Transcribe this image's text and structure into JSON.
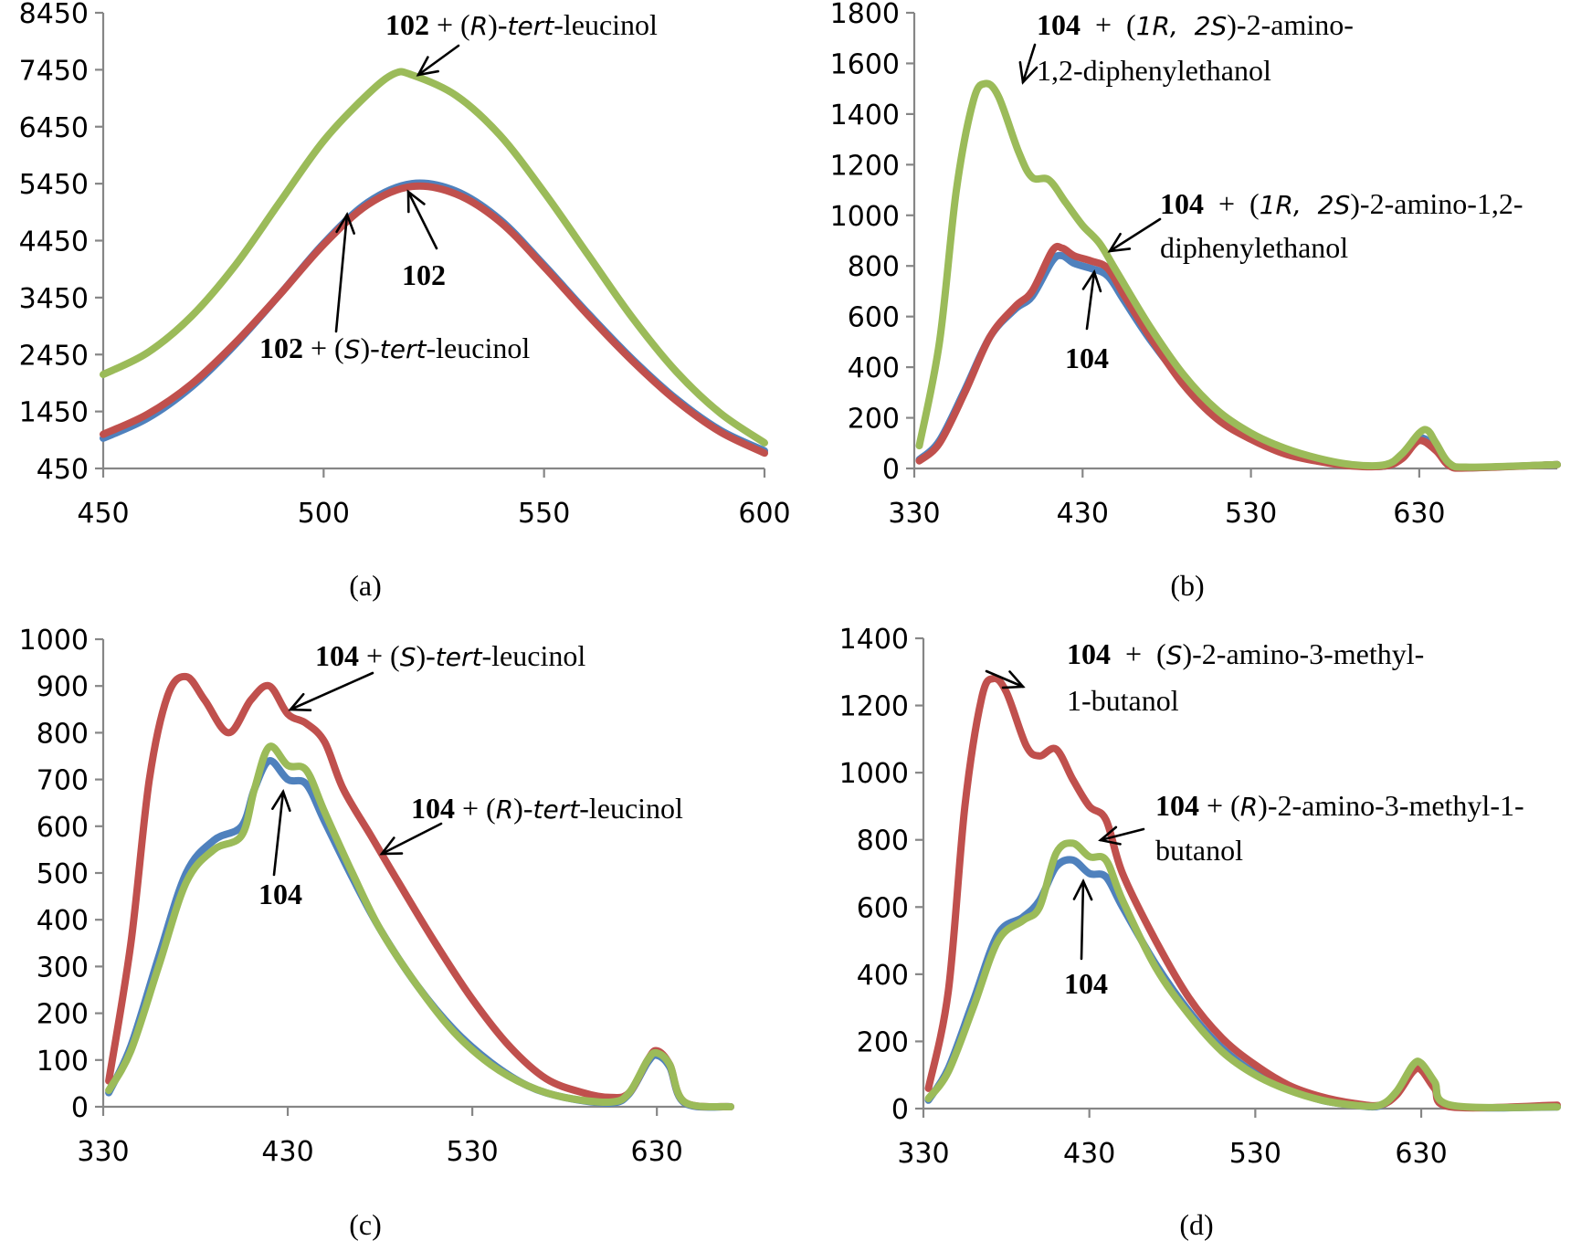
{
  "colors": {
    "blue": "#4F81BD",
    "red": "#C0504D",
    "green": "#9BBB59",
    "axis": "#868686",
    "text": "#000000"
  },
  "chart_data": [
    {
      "id": "a",
      "type": "line",
      "caption": "(a)",
      "title": "",
      "xlabel": "",
      "ylabel": "",
      "xlim": [
        450,
        600
      ],
      "ylim": [
        450,
        8450
      ],
      "xticks": [
        450,
        500,
        550,
        600
      ],
      "yticks": [
        450,
        1450,
        2450,
        3450,
        4450,
        5450,
        6450,
        7450,
        8450
      ],
      "grid": false,
      "series": [
        {
          "name": "102",
          "color": "blue",
          "x": [
            450,
            460,
            470,
            480,
            490,
            500,
            510,
            520,
            530,
            540,
            550,
            560,
            570,
            580,
            590,
            600
          ],
          "y": [
            980,
            1330,
            1880,
            2630,
            3500,
            4400,
            5120,
            5450,
            5320,
            4820,
            4020,
            3170,
            2370,
            1670,
            1120,
            760
          ]
        },
        {
          "name": "102 + (S)-tert-leucinol",
          "color": "red",
          "x": [
            450,
            460,
            470,
            480,
            490,
            500,
            510,
            520,
            530,
            540,
            550,
            560,
            570,
            580,
            590,
            600
          ],
          "y": [
            1050,
            1400,
            1930,
            2660,
            3500,
            4380,
            5080,
            5400,
            5270,
            4780,
            3990,
            3140,
            2340,
            1640,
            1090,
            720
          ]
        },
        {
          "name": "102 + (R)-tert-leucinol",
          "color": "green",
          "x": [
            450,
            460,
            470,
            480,
            490,
            500,
            510,
            516,
            520,
            530,
            540,
            550,
            560,
            570,
            580,
            590,
            600
          ],
          "y": [
            2100,
            2480,
            3120,
            4020,
            5120,
            6200,
            7020,
            7380,
            7360,
            7000,
            6300,
            5300,
            4200,
            3100,
            2150,
            1420,
            900
          ]
        }
      ],
      "annotations": [
        {
          "target": "102 + (R)-tert-leucinol",
          "parts": [
            {
              "t": "102",
              "s": "b"
            },
            {
              "t": " + (",
              "s": ""
            },
            {
              "t": "R",
              "s": "i"
            },
            {
              "t": ")-",
              "s": ""
            },
            {
              "t": "tert",
              "s": "i"
            },
            {
              "t": "-leucinol",
              "s": ""
            }
          ]
        },
        {
          "target": "102",
          "parts": [
            {
              "t": "102",
              "s": "b"
            }
          ]
        },
        {
          "target": "102 + (S)-tert-leucinol",
          "parts": [
            {
              "t": "102",
              "s": "b"
            },
            {
              "t": " + (",
              "s": ""
            },
            {
              "t": "S",
              "s": "i"
            },
            {
              "t": ")-",
              "s": ""
            },
            {
              "t": "tert",
              "s": "i"
            },
            {
              "t": "-leucinol",
              "s": ""
            }
          ]
        }
      ]
    },
    {
      "id": "b",
      "type": "line",
      "caption": "(b)",
      "title": "",
      "xlabel": "",
      "ylabel": "",
      "xlim": [
        330,
        712
      ],
      "ylim": [
        0,
        1800
      ],
      "xticks": [
        330,
        430,
        530,
        630
      ],
      "yticks": [
        0,
        200,
        400,
        600,
        800,
        1000,
        1200,
        1400,
        1600,
        1800
      ],
      "grid": false,
      "series": [
        {
          "name": "104",
          "color": "blue",
          "x": [
            333,
            345,
            360,
            375,
            390,
            400,
            412,
            418,
            425,
            435,
            445,
            455,
            470,
            490,
            510,
            530,
            550,
            570,
            590,
            610,
            620,
            630,
            640,
            648,
            660,
            712
          ],
          "y": [
            35,
            110,
            310,
            520,
            630,
            680,
            820,
            840,
            810,
            790,
            760,
            660,
            510,
            340,
            205,
            125,
            65,
            32,
            12,
            10,
            45,
            120,
            80,
            12,
            3,
            15
          ]
        },
        {
          "name": "104 + (1R, 2S)-2-amino-1,2-diphenylethanol",
          "color": "red",
          "x": [
            333,
            345,
            360,
            375,
            390,
            400,
            412,
            418,
            425,
            435,
            445,
            455,
            470,
            490,
            510,
            530,
            550,
            570,
            590,
            610,
            620,
            630,
            640,
            648,
            660,
            712
          ],
          "y": [
            30,
            100,
            300,
            520,
            640,
            700,
            860,
            870,
            840,
            820,
            790,
            680,
            520,
            330,
            195,
            115,
            58,
            28,
            10,
            10,
            40,
            110,
            70,
            10,
            2,
            15
          ]
        },
        {
          "name": "104 + (1R, 2S)-2-amino-1,2-diphenylethanol (upper)",
          "color": "green",
          "x": [
            333,
            345,
            355,
            365,
            372,
            380,
            392,
            400,
            410,
            420,
            430,
            440,
            450,
            470,
            490,
            510,
            530,
            550,
            570,
            590,
            610,
            620,
            630,
            635,
            640,
            648,
            660,
            712
          ],
          "y": [
            90,
            500,
            1100,
            1450,
            1520,
            1470,
            1250,
            1150,
            1140,
            1050,
            960,
            890,
            780,
            560,
            370,
            230,
            140,
            80,
            40,
            15,
            15,
            60,
            140,
            150,
            100,
            20,
            5,
            15
          ]
        }
      ],
      "annotations": [
        {
          "target": "green",
          "parts": [
            {
              "t": "104",
              "s": "b"
            },
            {
              "t": "  +  (",
              "s": ""
            },
            {
              "t": "1R,  2S",
              "s": "i"
            },
            {
              "t": ")-2-amino-",
              "s": ""
            }
          ],
          "line2": "1,2-diphenylethanol"
        },
        {
          "target": "red",
          "parts": [
            {
              "t": "104",
              "s": "b"
            },
            {
              "t": "  +  (",
              "s": ""
            },
            {
              "t": "1R,  2S",
              "s": "i"
            },
            {
              "t": ")-2-amino-1,2-",
              "s": ""
            }
          ],
          "line2": "diphenylethanol"
        },
        {
          "target": "blue",
          "parts": [
            {
              "t": "104",
              "s": "b"
            }
          ]
        }
      ]
    },
    {
      "id": "c",
      "type": "line",
      "caption": "(c)",
      "title": "",
      "xlabel": "",
      "ylabel": "",
      "xlim": [
        330,
        670
      ],
      "ylim": [
        0,
        1000
      ],
      "xticks": [
        330,
        430,
        530,
        630
      ],
      "yticks": [
        0,
        100,
        200,
        300,
        400,
        500,
        600,
        700,
        800,
        900,
        1000
      ],
      "grid": false,
      "series": [
        {
          "name": "104",
          "color": "blue",
          "x": [
            333,
            345,
            360,
            375,
            390,
            405,
            412,
            420,
            430,
            440,
            450,
            465,
            480,
            500,
            520,
            540,
            560,
            580,
            605,
            615,
            625,
            630,
            637,
            645,
            670
          ],
          "y": [
            30,
            130,
            320,
            500,
            570,
            600,
            680,
            740,
            700,
            690,
            610,
            490,
            380,
            260,
            165,
            95,
            45,
            20,
            8,
            28,
            95,
            110,
            85,
            8,
            0
          ]
        },
        {
          "name": "104 + (S)-tert-leucinol",
          "color": "red",
          "x": [
            333,
            345,
            355,
            365,
            375,
            385,
            398,
            410,
            420,
            430,
            440,
            450,
            460,
            475,
            490,
            510,
            530,
            550,
            570,
            590,
            605,
            615,
            625,
            630,
            637,
            645,
            670
          ],
          "y": [
            55,
            350,
            700,
            880,
            920,
            870,
            800,
            870,
            900,
            840,
            820,
            780,
            680,
            580,
            480,
            350,
            230,
            130,
            60,
            30,
            20,
            30,
            100,
            120,
            90,
            10,
            0
          ]
        },
        {
          "name": "104 + (R)-tert-leucinol",
          "color": "green",
          "x": [
            333,
            345,
            360,
            375,
            390,
            405,
            412,
            420,
            430,
            440,
            450,
            465,
            480,
            500,
            520,
            540,
            560,
            580,
            605,
            615,
            625,
            630,
            637,
            645,
            670
          ],
          "y": [
            35,
            120,
            300,
            480,
            550,
            580,
            680,
            770,
            730,
            720,
            630,
            500,
            380,
            260,
            160,
            90,
            45,
            20,
            10,
            30,
            100,
            115,
            90,
            10,
            0
          ]
        }
      ],
      "annotations": [
        {
          "target": "red",
          "parts": [
            {
              "t": "104",
              "s": "b"
            },
            {
              "t": " + (",
              "s": ""
            },
            {
              "t": "S",
              "s": "i"
            },
            {
              "t": ")-",
              "s": ""
            },
            {
              "t": "tert",
              "s": "i"
            },
            {
              "t": "-leucinol",
              "s": ""
            }
          ]
        },
        {
          "target": "green",
          "parts": [
            {
              "t": "104",
              "s": "b"
            },
            {
              "t": " + (",
              "s": ""
            },
            {
              "t": "R",
              "s": "i"
            },
            {
              "t": ")-",
              "s": ""
            },
            {
              "t": "tert",
              "s": "i"
            },
            {
              "t": "-leucinol",
              "s": ""
            }
          ]
        },
        {
          "target": "blue",
          "parts": [
            {
              "t": "104",
              "s": "b"
            }
          ]
        }
      ]
    },
    {
      "id": "d",
      "type": "line",
      "caption": "(d)",
      "title": "",
      "xlabel": "",
      "ylabel": "",
      "xlim": [
        330,
        712
      ],
      "ylim": [
        0,
        1400
      ],
      "xticks": [
        330,
        430,
        530,
        630
      ],
      "yticks": [
        0,
        200,
        400,
        600,
        800,
        1000,
        1200,
        1400
      ],
      "grid": false,
      "series": [
        {
          "name": "104",
          "color": "blue",
          "x": [
            333,
            345,
            360,
            375,
            390,
            400,
            410,
            420,
            430,
            440,
            450,
            470,
            490,
            510,
            530,
            550,
            570,
            590,
            605,
            615,
            625,
            630,
            638,
            648,
            712
          ],
          "y": [
            25,
            120,
            320,
            520,
            570,
            620,
            720,
            740,
            700,
            690,
            600,
            430,
            290,
            180,
            105,
            58,
            25,
            10,
            8,
            45,
            120,
            125,
            75,
            8,
            5
          ]
        },
        {
          "name": "104 + (S)-2-amino-3-methyl-1-butanol",
          "color": "red",
          "x": [
            333,
            345,
            355,
            365,
            372,
            380,
            392,
            400,
            410,
            420,
            430,
            440,
            450,
            470,
            490,
            510,
            530,
            550,
            570,
            590,
            605,
            615,
            625,
            630,
            638,
            648,
            712
          ],
          "y": [
            60,
            350,
            900,
            1220,
            1280,
            1240,
            1080,
            1050,
            1070,
            980,
            900,
            860,
            700,
            500,
            330,
            210,
            130,
            70,
            35,
            15,
            10,
            40,
            110,
            115,
            60,
            5,
            10
          ]
        },
        {
          "name": "104 + (R)-2-amino-3-methyl-1-butanol",
          "color": "green",
          "x": [
            333,
            345,
            360,
            375,
            390,
            400,
            410,
            420,
            430,
            440,
            450,
            470,
            490,
            510,
            530,
            550,
            570,
            590,
            605,
            615,
            625,
            630,
            638,
            648,
            712
          ],
          "y": [
            30,
            110,
            300,
            500,
            560,
            600,
            760,
            790,
            750,
            740,
            620,
            420,
            280,
            170,
            100,
            55,
            25,
            10,
            10,
            50,
            130,
            135,
            80,
            10,
            5
          ]
        }
      ],
      "annotations": [
        {
          "target": "red",
          "parts": [
            {
              "t": "104",
              "s": "b"
            },
            {
              "t": "  +  (",
              "s": ""
            },
            {
              "t": "S",
              "s": "i"
            },
            {
              "t": ")-2-amino-3-methyl-",
              "s": ""
            }
          ],
          "line2": "1-butanol"
        },
        {
          "target": "green",
          "parts": [
            {
              "t": "104",
              "s": "b"
            },
            {
              "t": " + (",
              "s": ""
            },
            {
              "t": "R",
              "s": "i"
            },
            {
              "t": ")-2-amino-3-methyl-1-",
              "s": ""
            }
          ],
          "line2": "butanol"
        },
        {
          "target": "blue",
          "parts": [
            {
              "t": "104",
              "s": "b"
            }
          ]
        }
      ]
    }
  ]
}
